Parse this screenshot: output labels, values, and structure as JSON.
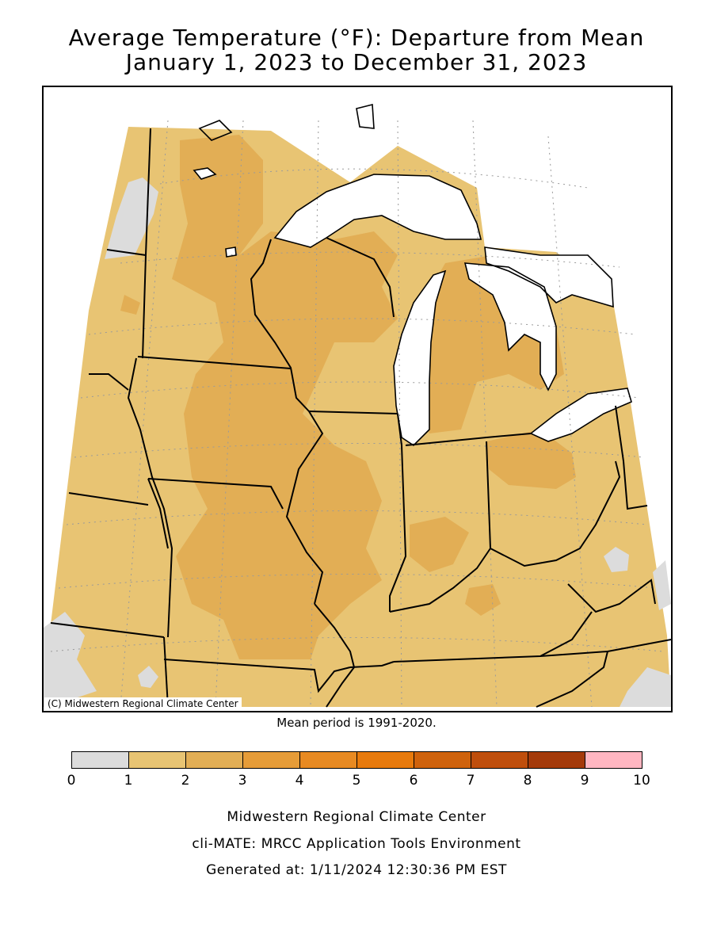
{
  "title_line1": "Average Temperature (°F): Departure from Mean",
  "title_line2": "January 1, 2023 to December 31, 2023",
  "map": {
    "credit": "(C) Midwestern Regional Climate Center",
    "colors": {
      "water": "#ffffff",
      "bin_0_1": "#dcdcdc",
      "bin_1_2": "#e8c473",
      "bin_2_3": "#e2ae55",
      "border": "#000000",
      "grid": "#9a9a9a"
    }
  },
  "mean_period": "Mean period is 1991-2020.",
  "legend": {
    "bins": [
      {
        "from": 0,
        "to": 1,
        "color": "#dcdcdc"
      },
      {
        "from": 1,
        "to": 2,
        "color": "#e8c473"
      },
      {
        "from": 2,
        "to": 3,
        "color": "#e2ae55"
      },
      {
        "from": 3,
        "to": 4,
        "color": "#e69c38"
      },
      {
        "from": 4,
        "to": 5,
        "color": "#e88a22"
      },
      {
        "from": 5,
        "to": 6,
        "color": "#e87a0c"
      },
      {
        "from": 6,
        "to": 7,
        "color": "#cf620c"
      },
      {
        "from": 7,
        "to": 8,
        "color": "#bf4e0c"
      },
      {
        "from": 8,
        "to": 9,
        "color": "#a43a0a"
      },
      {
        "from": 9,
        "to": 10,
        "color": "#ffb6c1"
      }
    ],
    "labels": [
      "0",
      "1",
      "2",
      "3",
      "4",
      "5",
      "6",
      "7",
      "8",
      "9",
      "10"
    ]
  },
  "footer": {
    "line1": "Midwestern Regional Climate Center",
    "line2": "cli-MATE: MRCC Application Tools Environment",
    "line3": "Generated at: 1/11/2024 12:30:36 PM EST"
  }
}
